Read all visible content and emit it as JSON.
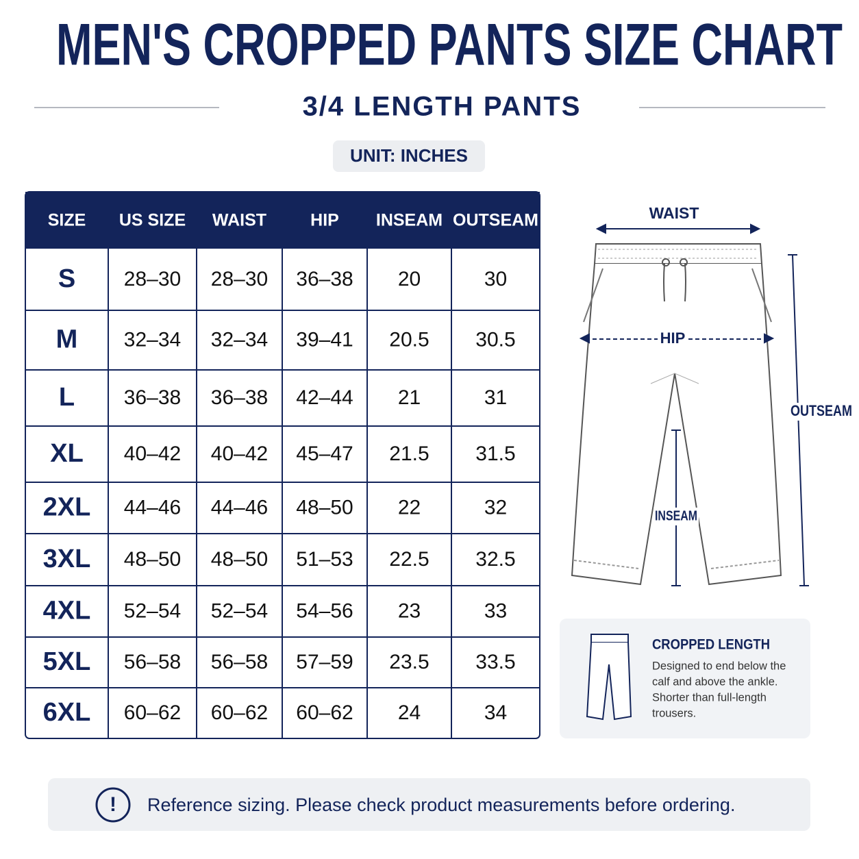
{
  "header": {
    "title": "MEN'S CROPPED PANTS SIZE CHART",
    "subtitle": "3/4 LENGTH PANTS",
    "unit": "UNIT: INCHES"
  },
  "table": {
    "columns": [
      "SIZE",
      "US SIZE",
      "WAIST",
      "HIP",
      "INSEAM",
      "OUTSEAM"
    ],
    "rows": [
      [
        "S",
        "28–30",
        "28–30",
        "36–38",
        "20",
        "30"
      ],
      [
        "M",
        "32–34",
        "32–34",
        "39–41",
        "20.5",
        "30.5"
      ],
      [
        "L",
        "36–38",
        "36–38",
        "42–44",
        "21",
        "31"
      ],
      [
        "XL",
        "40–42",
        "40–42",
        "45–47",
        "21.5",
        "31.5"
      ],
      [
        "2XL",
        "44–46",
        "44–46",
        "48–50",
        "22",
        "32"
      ],
      [
        "3XL",
        "48–50",
        "48–50",
        "51–53",
        "22.5",
        "32.5"
      ],
      [
        "4XL",
        "52–54",
        "52–54",
        "54–56",
        "23",
        "33"
      ],
      [
        "5XL",
        "56–58",
        "56–58",
        "57–59",
        "23.5",
        "33.5"
      ],
      [
        "6XL",
        "60–62",
        "60–62",
        "60–62",
        "24",
        "34"
      ]
    ]
  },
  "diagram": {
    "waist": "WAIST",
    "hip": "HIP",
    "outseam": "OUTSEAM",
    "inseam": "INSEAM"
  },
  "info": {
    "title": "CROPPED LENGTH",
    "lines": [
      "Designed to end below the",
      "calf and above the ankle.",
      "Shorter than full-length",
      "trousers."
    ]
  },
  "footer": {
    "icon": "!",
    "text": "Reference sizing. Please check product measurements before ordering."
  }
}
